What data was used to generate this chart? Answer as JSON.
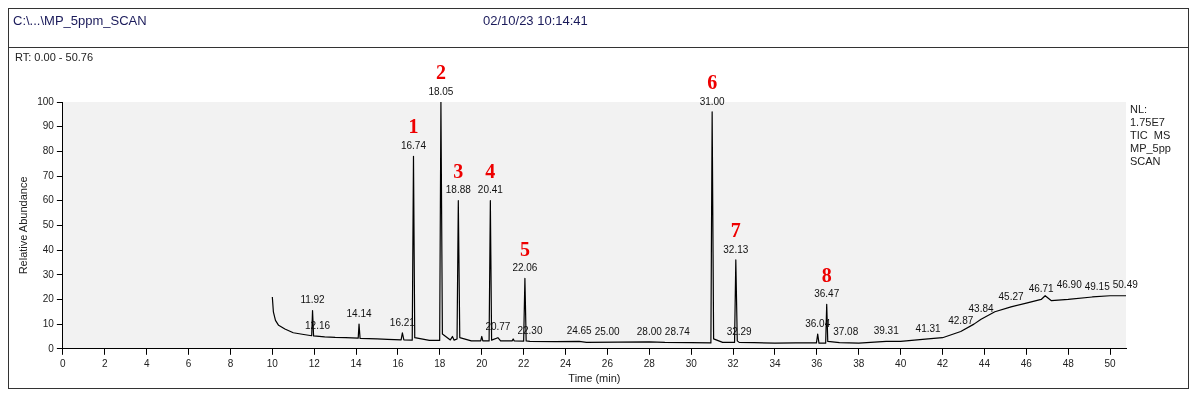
{
  "chart_data": {
    "type": "line",
    "title": "C:\\...\\MP_5ppm_SCAN",
    "subtitle": "02/10/23 10:14:41",
    "xlabel": "Time (min)",
    "ylabel": "Relative Abundance",
    "x": [
      10,
      10.05,
      10.15,
      10.3,
      10.6,
      11,
      11.5,
      11.88,
      11.92,
      11.97,
      12.5,
      13,
      13.5,
      14.1,
      14.14,
      14.19,
      15,
      15.5,
      16.15,
      16.21,
      16.28,
      16.68,
      16.74,
      16.8,
      17.5,
      17.99,
      18.05,
      18.12,
      18.5,
      18.6,
      18.68,
      18.82,
      18.88,
      18.95,
      19.5,
      19.95,
      20.0,
      20.05,
      20.35,
      20.41,
      20.47,
      20.77,
      20.9,
      21.45,
      21.5,
      21.55,
      22.0,
      22.06,
      22.12,
      22.3,
      23.5,
      24.65,
      25.0,
      26.5,
      28.0,
      28.74,
      30.0,
      30.94,
      31.0,
      31.07,
      31.5,
      32.07,
      32.13,
      32.2,
      32.29,
      33,
      34,
      35,
      35.98,
      36.04,
      36.1,
      36.42,
      36.47,
      36.52,
      37.08,
      38,
      39.31,
      40,
      41.31,
      42,
      42.87,
      43.5,
      43.84,
      44.5,
      45.27,
      46,
      46.71,
      46.9,
      47.2,
      48,
      49.15,
      50,
      50.76
    ],
    "series": [
      {
        "color": "#000000",
        "values": [
          21,
          15,
          11.5,
          9.5,
          8,
          6.5,
          5.8,
          5.3,
          15.5,
          5.2,
          4.8,
          4.6,
          4.5,
          4.3,
          10,
          4.2,
          4,
          3.8,
          3.6,
          6.5,
          3.6,
          3.5,
          78,
          4.5,
          3.4,
          3.4,
          100,
          6,
          3.6,
          5,
          3.5,
          4,
          60,
          4.5,
          3.2,
          3.2,
          5,
          3.2,
          3.2,
          60,
          3.5,
          4.5,
          3.2,
          3.2,
          4,
          3.2,
          3.1,
          28.5,
          3.2,
          3,
          2.9,
          3,
          2.6,
          2.7,
          2.8,
          2.6,
          2.5,
          2.4,
          96,
          4,
          2.6,
          2.6,
          36,
          3.2,
          2.6,
          2.5,
          2.3,
          2.4,
          2.4,
          6,
          2.3,
          2.3,
          18,
          3,
          2.5,
          2.3,
          3,
          3,
          4,
          4.5,
          7,
          10,
          12,
          15,
          17,
          18.5,
          20,
          21.5,
          19.5,
          20,
          21,
          21.5,
          21.5
        ]
      }
    ],
    "xlim": [
      0,
      50.76
    ],
    "xticks": [
      0,
      2,
      4,
      6,
      8,
      10,
      12,
      14,
      16,
      18,
      20,
      22,
      24,
      26,
      28,
      30,
      32,
      34,
      36,
      38,
      40,
      42,
      44,
      46,
      48,
      50
    ],
    "ylim": [
      0,
      100
    ],
    "yticks": [
      0,
      10,
      20,
      30,
      40,
      50,
      60,
      70,
      80,
      90,
      100
    ],
    "grid": false,
    "legend": false,
    "marker": "none",
    "line_style": "solid",
    "annotations": [
      "RT: 0.00 - 50.76",
      "NL:",
      "1.75E7",
      "TIC  MS",
      "MP_5pp",
      "SCAN",
      {
        "text": "11.92",
        "x": 11.92,
        "y": 15.5
      },
      {
        "text": "12.16",
        "x": 12.16,
        "y": 5
      },
      {
        "text": "14.14",
        "x": 14.14,
        "y": 10
      },
      {
        "text": "16.21",
        "x": 16.21,
        "y": 6.5
      },
      {
        "text": "16.74",
        "x": 16.74,
        "y": 78
      },
      {
        "text": "1",
        "x": 16.74,
        "y": 78
      },
      {
        "text": "18.05",
        "x": 18.05,
        "y": 100
      },
      {
        "text": "2",
        "x": 18.05,
        "y": 100
      },
      {
        "text": "18.88",
        "x": 18.88,
        "y": 60
      },
      {
        "text": "3",
        "x": 18.88,
        "y": 60
      },
      {
        "text": "20.41",
        "x": 20.41,
        "y": 60
      },
      {
        "text": "4",
        "x": 20.41,
        "y": 60
      },
      {
        "text": "20.77",
        "x": 20.77,
        "y": 4.5
      },
      {
        "text": "22.06",
        "x": 22.06,
        "y": 28.5
      },
      {
        "text": "5",
        "x": 22.06,
        "y": 28.5
      },
      {
        "text": "22.30",
        "x": 22.3,
        "y": 3
      },
      {
        "text": "24.65",
        "x": 24.65,
        "y": 3
      },
      {
        "text": "25.00",
        "x": 25.0,
        "y": 2.6
      },
      {
        "text": "28.00",
        "x": 28.0,
        "y": 2.8
      },
      {
        "text": "28.74",
        "x": 28.74,
        "y": 2.6
      },
      {
        "text": "31.00",
        "x": 31.0,
        "y": 96
      },
      {
        "text": "6",
        "x": 31.0,
        "y": 96
      },
      {
        "text": "32.13",
        "x": 32.13,
        "y": 36
      },
      {
        "text": "7",
        "x": 32.13,
        "y": 36
      },
      {
        "text": "32.29",
        "x": 32.29,
        "y": 2.6
      },
      {
        "text": "36.04",
        "x": 36.04,
        "y": 6
      },
      {
        "text": "36.47",
        "x": 36.47,
        "y": 18
      },
      {
        "text": "8",
        "x": 36.47,
        "y": 18
      },
      {
        "text": "37.08",
        "x": 37.08,
        "y": 2.5
      },
      {
        "text": "39.31",
        "x": 39.31,
        "y": 3
      },
      {
        "text": "41.31",
        "x": 41.31,
        "y": 4
      },
      {
        "text": "42.87",
        "x": 42.87,
        "y": 7
      },
      {
        "text": "43.84",
        "x": 43.84,
        "y": 12
      },
      {
        "text": "45.27",
        "x": 45.27,
        "y": 17
      },
      {
        "text": "46.71",
        "x": 46.71,
        "y": 20
      },
      {
        "text": "46.90",
        "x": 46.9,
        "y": 21.5
      },
      {
        "text": "49.15",
        "x": 49.15,
        "y": 21
      },
      {
        "text": "50.49",
        "x": 50.49,
        "y": 21.5
      }
    ]
  }
}
